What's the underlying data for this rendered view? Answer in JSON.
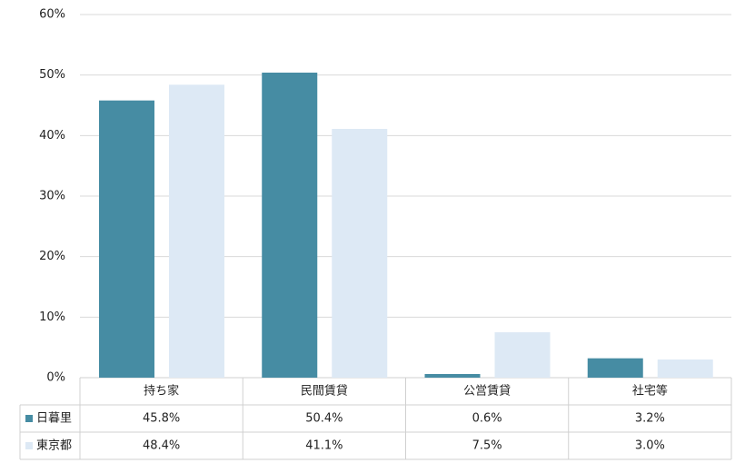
{
  "chart_data": {
    "type": "bar",
    "categories": [
      "持ち家",
      "民間賃貸",
      "公営賃貸",
      "社宅等"
    ],
    "series": [
      {
        "name": "日暮里",
        "color": "#468ca3",
        "values": [
          45.8,
          50.4,
          0.6,
          3.2
        ],
        "value_labels": [
          "45.8%",
          "50.4%",
          "0.6%",
          "3.2%"
        ]
      },
      {
        "name": "東京都",
        "color": "#dde9f5",
        "values": [
          48.4,
          41.1,
          7.5,
          3.0
        ],
        "value_labels": [
          "48.4%",
          "41.1%",
          "7.5%",
          "3.0%"
        ]
      }
    ],
    "ylim": [
      0,
      60
    ],
    "yticks": [
      {
        "value": 0,
        "label": "0%"
      },
      {
        "value": 10,
        "label": "10%"
      },
      {
        "value": 20,
        "label": "20%"
      },
      {
        "value": 30,
        "label": "30%"
      },
      {
        "value": 40,
        "label": "40%"
      },
      {
        "value": 50,
        "label": "50%"
      },
      {
        "value": 60,
        "label": "60%"
      }
    ],
    "grid": true
  }
}
